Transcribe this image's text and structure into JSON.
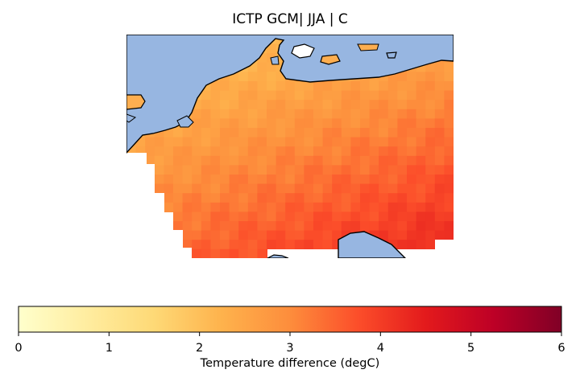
{
  "title": "ICTP GCM| JJA | C",
  "map": {
    "region": "Central Europe (Germany, Benelux, Denmark, Alps)",
    "ocean_color": "#97b6e1",
    "coastline_color": "#000000",
    "value_range": [
      2.0,
      4.2
    ],
    "hot_spot_description": "warmest in the south-east, cooler toward the North Sea coast"
  },
  "colorbar": {
    "colormap": "YlOrRd",
    "vmin": 0,
    "vmax": 6,
    "ticks": [
      "0",
      "1",
      "2",
      "3",
      "4",
      "5",
      "6"
    ],
    "label": "Temperature difference (degC)",
    "stops": [
      "#ffffcc",
      "#ffeda0",
      "#fed976",
      "#feb24c",
      "#fd8d3c",
      "#fc4e2a",
      "#e31a1c",
      "#bd0026",
      "#800026"
    ]
  }
}
